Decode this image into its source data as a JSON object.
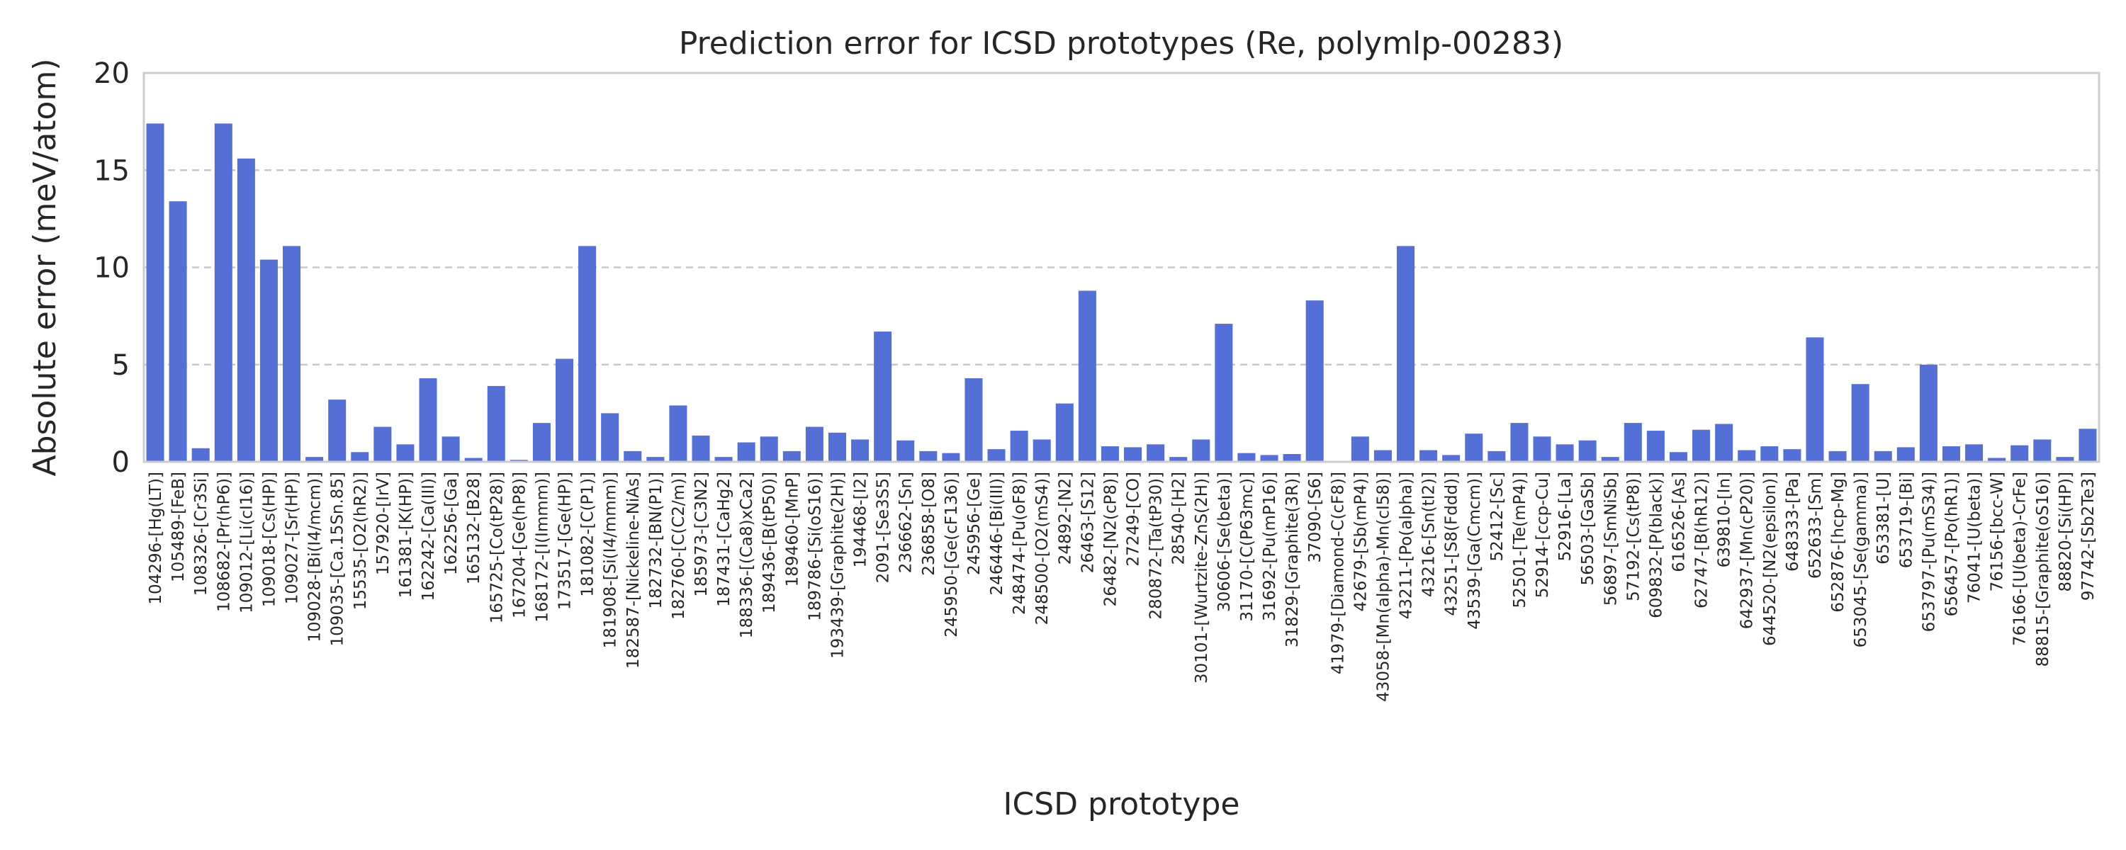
{
  "chart_data": {
    "type": "bar",
    "title": "Prediction error for ICSD prototypes (Re, polymlp-00283)",
    "xlabel": "ICSD prototype",
    "ylabel": "Absolute error (meV/atom)",
    "ylim": [
      0,
      20
    ],
    "yticks": [
      0,
      5,
      10,
      15,
      20
    ],
    "grid": "y-dashed",
    "bar_color": "#5470d6",
    "categories": [
      "104296-[Hg(LT)]",
      "105489-[FeB]",
      "108326-[Cr3Si]",
      "108682-[Pr(hP6)]",
      "109012-[Li(cI16)]",
      "109018-[Cs(HP)]",
      "109027-[Sr(HP)]",
      "109028-[Bi(I4/mcm)]",
      "109035-[Ca.15Sn.85]",
      "15535-[O2(hR2)]",
      "157920-[IrV]",
      "161381-[K(HP)]",
      "162242-[Ca(III)]",
      "162256-[Ga]",
      "165132-[B28]",
      "165725-[Co(tP28)]",
      "167204-[Ge(hP8)]",
      "168172-[I(Immm)]",
      "173517-[Ge(HP)]",
      "181082-[C(P1)]",
      "181908-[Si(I4/mmm)]",
      "182587-[Nickeline-NiAs]",
      "182732-[BN(P1)]",
      "182760-[C(C2/m)]",
      "185973-[C3N2]",
      "187431-[CaHg2]",
      "188336-[(Ca8)xCa2]",
      "189436-[B(tP50)]",
      "189460-[MnP]",
      "189786-[Si(oS16)]",
      "193439-[Graphite(2H)]",
      "194468-[I2]",
      "2091-[Se3S5]",
      "236662-[Sn]",
      "236858-[O8]",
      "245950-[Ge(cF136)]",
      "245956-[Ge]",
      "246446-[Bi(III)]",
      "248474-[Pu(oF8)]",
      "248500-[O2(mS4)]",
      "24892-[N2]",
      "26463-[S12]",
      "26482-[N2(cP8)]",
      "27249-[CO]",
      "280872-[Ta(tP30)]",
      "28540-[H2]",
      "30101-[Wurtzite-ZnS(2H)]",
      "30606-[Se(beta)]",
      "31170-[C(P63mc)]",
      "31692-[Pu(mP16)]",
      "31829-[Graphite(3R)]",
      "37090-[S6]",
      "41979-[Diamond-C(cF8)]",
      "42679-[Sb(mP4)]",
      "43058-[Mn(alpha)-Mn(cI58)]",
      "43211-[Po(alpha)]",
      "43216-[Sn(tI2)]",
      "43251-[S8(Fddd)]",
      "43539-[Ga(Cmcm)]",
      "52412-[Sc]",
      "52501-[Te(mP4)]",
      "52914-[ccp-Cu]",
      "52916-[La]",
      "56503-[GaSb]",
      "56897-[SmNiSb]",
      "57192-[Cs(tP8)]",
      "609832-[P(black)]",
      "616526-[As]",
      "62747-[B(hR12)]",
      "639810-[In]",
      "642937-[Mn(cP20)]",
      "644520-[N2(epsilon)]",
      "648333-[Pa]",
      "652633-[Sm]",
      "652876-[hcp-Mg]",
      "653045-[Se(gamma)]",
      "653381-[U]",
      "653719-[Bi]",
      "653797-[Pu(mS34)]",
      "656457-[Po(hR1)]",
      "76041-[U(beta)]",
      "76156-[bcc-W]",
      "76166-[U(beta)-CrFe]",
      "88815-[Graphite(oS16)]",
      "88820-[Si(HP)]",
      "97742-[Sb2Te3]"
    ],
    "values": [
      17.4,
      13.4,
      0.7,
      17.4,
      15.6,
      10.4,
      11.1,
      0.25,
      3.2,
      0.5,
      1.8,
      0.9,
      4.3,
      1.3,
      0.2,
      3.9,
      0.1,
      2.0,
      5.3,
      11.1,
      2.5,
      0.55,
      0.25,
      2.9,
      1.35,
      0.25,
      1.0,
      1.3,
      0.55,
      1.8,
      1.5,
      1.15,
      6.7,
      1.1,
      0.55,
      0.45,
      4.3,
      0.65,
      1.6,
      1.15,
      3.0,
      8.8,
      0.8,
      0.75,
      0.9,
      0.25,
      1.15,
      7.1,
      0.45,
      0.35,
      0.4,
      8.3,
      0.05,
      1.3,
      0.6,
      11.1,
      0.6,
      0.35,
      1.45,
      0.55,
      2.0,
      1.3,
      0.9,
      1.1,
      0.25,
      2.0,
      1.6,
      0.5,
      1.65,
      1.95,
      0.6,
      0.8,
      0.65,
      6.4,
      0.55,
      4.0,
      0.55,
      0.75,
      5.0,
      0.8,
      0.9,
      0.2,
      0.85,
      1.15,
      0.25,
      1.7
    ]
  }
}
